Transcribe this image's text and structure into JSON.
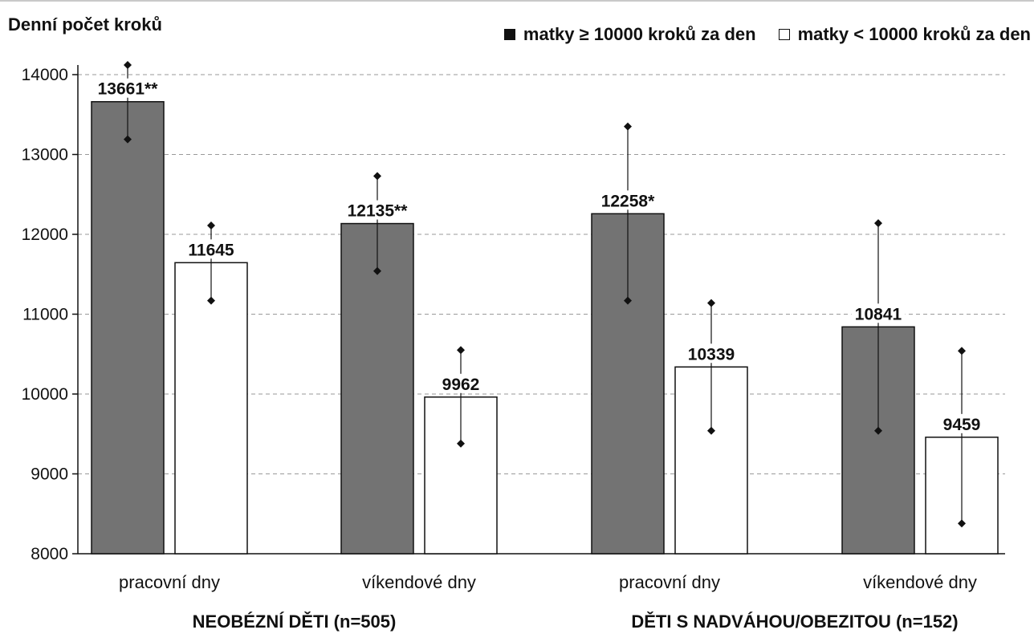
{
  "chart_data": {
    "type": "bar",
    "ylabel": "Denní počet kroků",
    "ylim": [
      8000,
      14000
    ],
    "yticks": [
      8000,
      9000,
      10000,
      11000,
      12000,
      13000,
      14000
    ],
    "grid": true,
    "legend_position": "top-right",
    "colors": {
      "mothers_high": "#737373",
      "mothers_low": "#ffffff"
    },
    "legend": [
      {
        "symbol": "■",
        "label": "matky ≥ 10000 kroků za den"
      },
      {
        "symbol": "□",
        "label": "matky < 10000 kroků za den"
      }
    ],
    "groups": [
      {
        "label": "NEOBÉZNÍ DĚTI (n=505)",
        "categories": [
          {
            "label": "pracovní dny",
            "bars": [
              {
                "series": 0,
                "value": 13661,
                "data_label": "13661**",
                "err_low": 13190,
                "err_high": 14120
              },
              {
                "series": 1,
                "value": 11645,
                "data_label": "11645",
                "err_low": 11170,
                "err_high": 12110
              }
            ]
          },
          {
            "label": "víkendové dny",
            "bars": [
              {
                "series": 0,
                "value": 12135,
                "data_label": "12135**",
                "err_low": 11540,
                "err_high": 12730
              },
              {
                "series": 1,
                "value": 9962,
                "data_label": "9962",
                "err_low": 9380,
                "err_high": 10550
              }
            ]
          }
        ]
      },
      {
        "label": "DĚTI S NADVÁHOU/OBEZITOU (n=152)",
        "categories": [
          {
            "label": "pracovní dny",
            "bars": [
              {
                "series": 0,
                "value": 12258,
                "data_label": "12258*",
                "err_low": 11170,
                "err_high": 13350
              },
              {
                "series": 1,
                "value": 10339,
                "data_label": "10339",
                "err_low": 9540,
                "err_high": 11140
              }
            ]
          },
          {
            "label": "víkendové dny",
            "bars": [
              {
                "series": 0,
                "value": 10841,
                "data_label": "10841",
                "err_low": 9540,
                "err_high": 12140
              },
              {
                "series": 1,
                "value": 9459,
                "data_label": "9459",
                "err_low": 8380,
                "err_high": 10540
              }
            ]
          }
        ]
      }
    ]
  }
}
